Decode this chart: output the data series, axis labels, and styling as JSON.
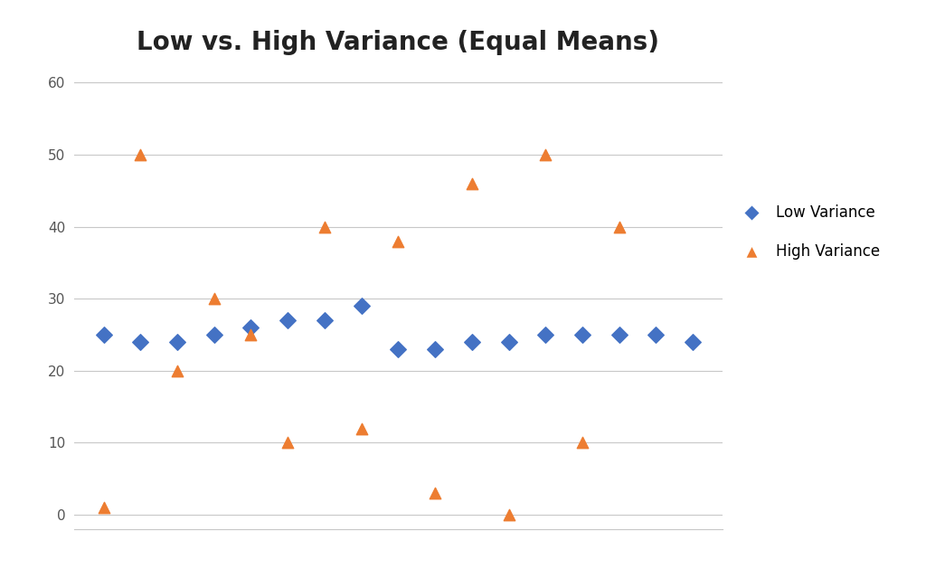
{
  "title": "Low vs. High Variance (Equal Means)",
  "title_fontsize": 20,
  "title_fontweight": "bold",
  "low_variance_x": [
    1,
    2,
    3,
    4,
    5,
    6,
    7,
    8,
    9,
    10,
    11,
    12,
    13,
    14,
    15,
    16,
    17
  ],
  "low_variance_y": [
    25,
    24,
    24,
    25,
    26,
    27,
    27,
    29,
    23,
    23,
    24,
    24,
    25,
    25,
    25,
    25,
    24
  ],
  "high_variance_x": [
    1,
    2,
    3,
    4,
    5,
    6,
    7,
    8,
    9,
    10,
    11,
    12,
    13,
    14,
    15
  ],
  "high_variance_y": [
    1,
    50,
    20,
    30,
    25,
    10,
    40,
    12,
    38,
    3,
    46,
    0,
    50,
    10,
    40
  ],
  "low_variance_color": "#4472C4",
  "high_variance_color": "#ED7D31",
  "ylim": [
    -2,
    62
  ],
  "yticks": [
    0,
    10,
    20,
    30,
    40,
    50,
    60
  ],
  "background_color": "#ffffff",
  "grid_color": "#c8c8c8",
  "legend_labels": [
    "Low Variance",
    "High Variance"
  ],
  "marker_size": 80,
  "legend_fontsize": 12,
  "tick_fontsize": 11
}
